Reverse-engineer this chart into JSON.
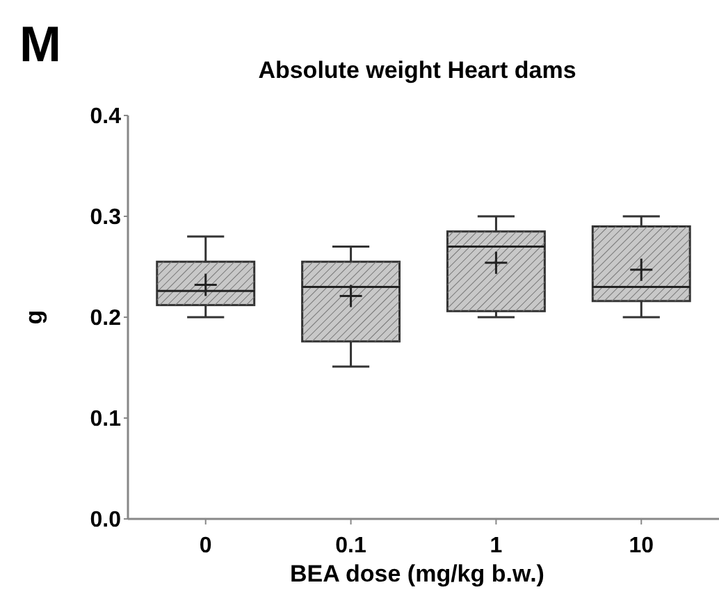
{
  "chart_data": {
    "type": "box",
    "title": "Absolute weight Heart dams",
    "xlabel": "BEA dose (mg/kg b.w.)",
    "ylabel": "g",
    "annotations": [
      "M"
    ],
    "categories": [
      "0",
      "0.1",
      "1",
      "10"
    ],
    "color": "#c8c8c8",
    "ylim": [
      0,
      0.4
    ],
    "yticks": [
      {
        "value": 0,
        "label": "0.0"
      },
      0.1,
      0.2,
      0.3,
      0.4
    ],
    "grid": false,
    "boxes": [
      {
        "low": 0.2,
        "q1": 0.212,
        "median": 0.226,
        "q3": 0.255,
        "high": 0.28,
        "mean": 0.232
      },
      {
        "low": 0.151,
        "q1": 0.176,
        "median": 0.23,
        "q3": 0.255,
        "high": 0.27,
        "mean": 0.221
      },
      {
        "low": 0.2,
        "q1": 0.206,
        "median": 0.27,
        "q3": 0.285,
        "high": 0.3,
        "mean": 0.254
      },
      {
        "low": 0.2,
        "q1": 0.216,
        "median": 0.23,
        "q3": 0.29,
        "high": 0.3,
        "mean": 0.247
      }
    ]
  }
}
